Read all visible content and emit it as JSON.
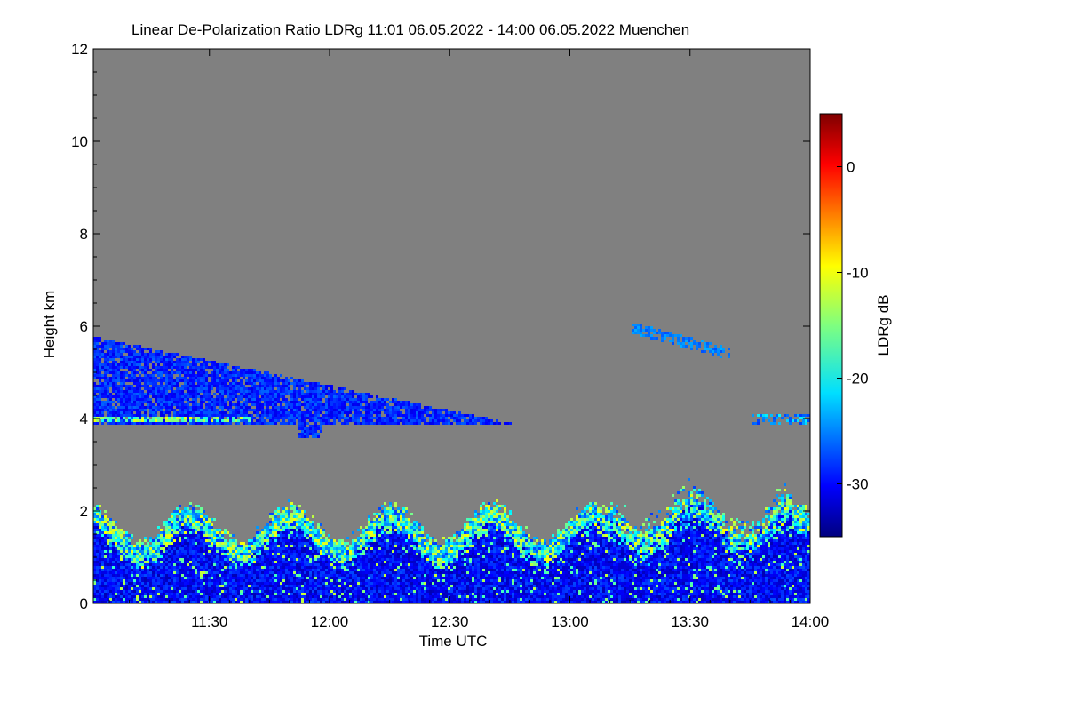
{
  "chart_data": {
    "type": "heatmap",
    "title": "Linear De-Polarization Ratio LDRg   11:01 06.05.2022 - 14:00 06.05.2022 Muenchen",
    "xlabel": "Time UTC",
    "ylabel": "Height km",
    "x_range_minutes": [
      661,
      840
    ],
    "x_ticks": [
      {
        "label": "11:30",
        "minute": 690
      },
      {
        "label": "12:00",
        "minute": 720
      },
      {
        "label": "12:30",
        "minute": 750
      },
      {
        "label": "13:00",
        "minute": 780
      },
      {
        "label": "13:30",
        "minute": 810
      },
      {
        "label": "14:00",
        "minute": 840
      }
    ],
    "ylim": [
      0,
      12
    ],
    "y_ticks": [
      "0",
      "2",
      "4",
      "6",
      "8",
      "10",
      "12"
    ],
    "colorbar": {
      "label": "LDRg dB",
      "range": [
        -35,
        5
      ],
      "ticks": [
        "0",
        "-10",
        "-20",
        "-30"
      ],
      "tick_values": [
        0,
        -10,
        -20,
        -30
      ]
    },
    "no_data_color": "#808080",
    "features": [
      {
        "name": "elevated aerosol/ice layer",
        "height_km": [
          3.5,
          5.9
        ],
        "time": "11:01-12:45",
        "ldr_db": -30
      },
      {
        "name": "mid-level thin layer",
        "height_km": [
          5.4,
          6.1
        ],
        "time": "13:15-13:40",
        "ldr_db": -28
      },
      {
        "name": "boundary layer",
        "height_km": [
          0,
          2.3
        ],
        "time": "11:01-14:00",
        "ldr_db": -33
      }
    ]
  }
}
